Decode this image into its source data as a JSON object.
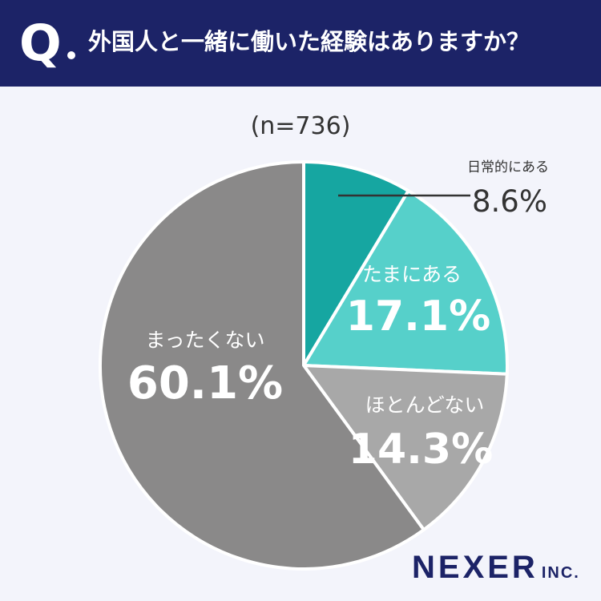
{
  "header": {
    "q_label": "Q",
    "question": "外国人と一緒に働いた経験はありますか？",
    "bg_color": "#1c2367"
  },
  "sample_size": "(n=736)",
  "chart_data": {
    "type": "pie",
    "categories": [
      "日常的にある",
      "たまにある",
      "ほとんどない",
      "まったくない"
    ],
    "values": [
      8.6,
      17.1,
      14.3,
      60.1
    ],
    "value_labels": [
      "8.6%",
      "17.1%",
      "14.3%",
      "60.1%"
    ],
    "colors": [
      "#16a6a1",
      "#56d0ca",
      "#a8a8a8",
      "#8a8989"
    ],
    "title": ""
  },
  "brand": {
    "name": "NEXER",
    "suffix": "INC."
  }
}
